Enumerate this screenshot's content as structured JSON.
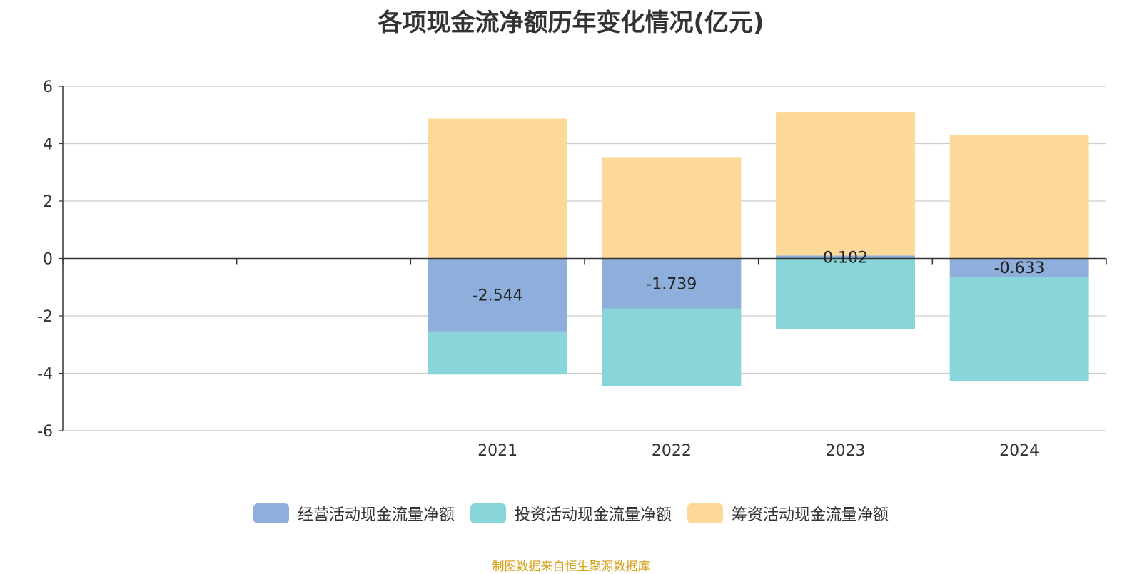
{
  "title": "各项现金流净额历年变化情况(亿元)",
  "source": "制图数据来自恒生聚源数据库",
  "chart_data": {
    "type": "bar",
    "stacked": true,
    "categories": [
      "",
      "",
      "2021",
      "2022",
      "2023",
      "2024"
    ],
    "ylim": [
      -6,
      6
    ],
    "yticks": [
      -6,
      -4,
      -2,
      0,
      2,
      4,
      6
    ],
    "grid": true,
    "legend_position": "bottom-center",
    "series": [
      {
        "name": "经营活动现金流量净额",
        "color": "#8eaedb",
        "values": [
          null,
          null,
          -2.544,
          -1.739,
          0.102,
          -0.633
        ],
        "labels": [
          "",
          "",
          "-2.544",
          "-1.739",
          "0.102",
          "-0.633"
        ]
      },
      {
        "name": "投资活动现金流量净额",
        "color": "#88d6d9",
        "values": [
          null,
          null,
          -1.5,
          -2.7,
          -2.46,
          -3.63
        ]
      },
      {
        "name": "筹资活动现金流量净额",
        "color": "#fdd999",
        "values": [
          null,
          null,
          4.87,
          3.53,
          5.0,
          4.3
        ]
      }
    ]
  }
}
